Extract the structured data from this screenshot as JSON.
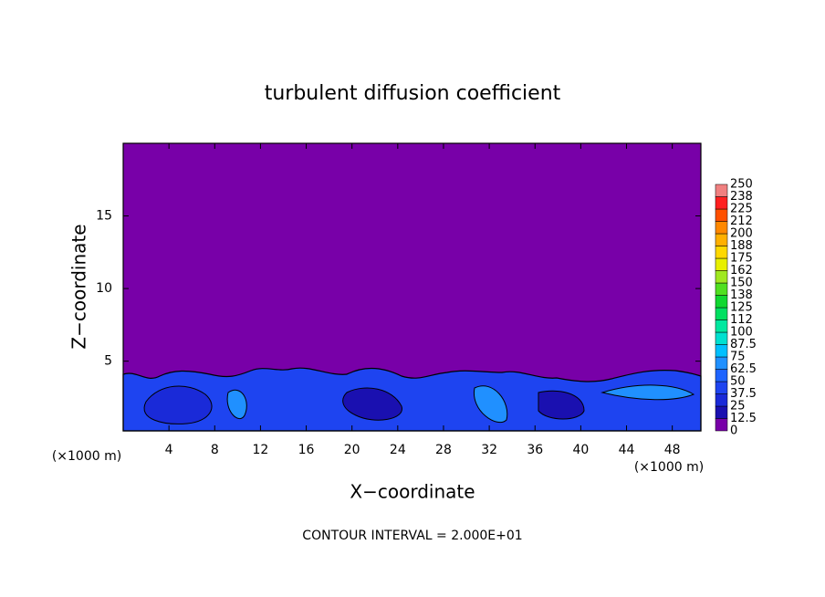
{
  "chart_data": {
    "type": "contour",
    "title": "turbulent diffusion coefficient",
    "xlabel": "X−coordinate",
    "ylabel": "Z−coordinate",
    "x_unit": "(×1000 m)",
    "y_unit": "(×1000 m)",
    "note": "CONTOUR INTERVAL = 2.000E+01",
    "xlim": [
      0,
      50.5
    ],
    "xticks": [
      4,
      8,
      12,
      16,
      20,
      24,
      28,
      32,
      36,
      40,
      44,
      48
    ],
    "ylim": [
      0.2,
      20
    ],
    "yticks": [
      5,
      10,
      15
    ],
    "colorbar_levels": [
      0,
      12.5,
      25,
      37.5,
      50,
      62.5,
      75,
      87.5,
      100,
      112,
      125,
      138,
      150,
      162,
      175,
      188,
      200,
      212,
      225,
      238,
      250
    ],
    "colorbar_colors": [
      "#7800a8",
      "#1a10b0",
      "#1a2ad8",
      "#1e44f0",
      "#1e64ff",
      "#2090ff",
      "#00c0ff",
      "#00e0d0",
      "#00e8a0",
      "#00e060",
      "#10d830",
      "#50e020",
      "#a0e820",
      "#e8f000",
      "#ffd800",
      "#ffb000",
      "#ff8800",
      "#ff5000",
      "#ff2020",
      "#f08080"
    ]
  }
}
